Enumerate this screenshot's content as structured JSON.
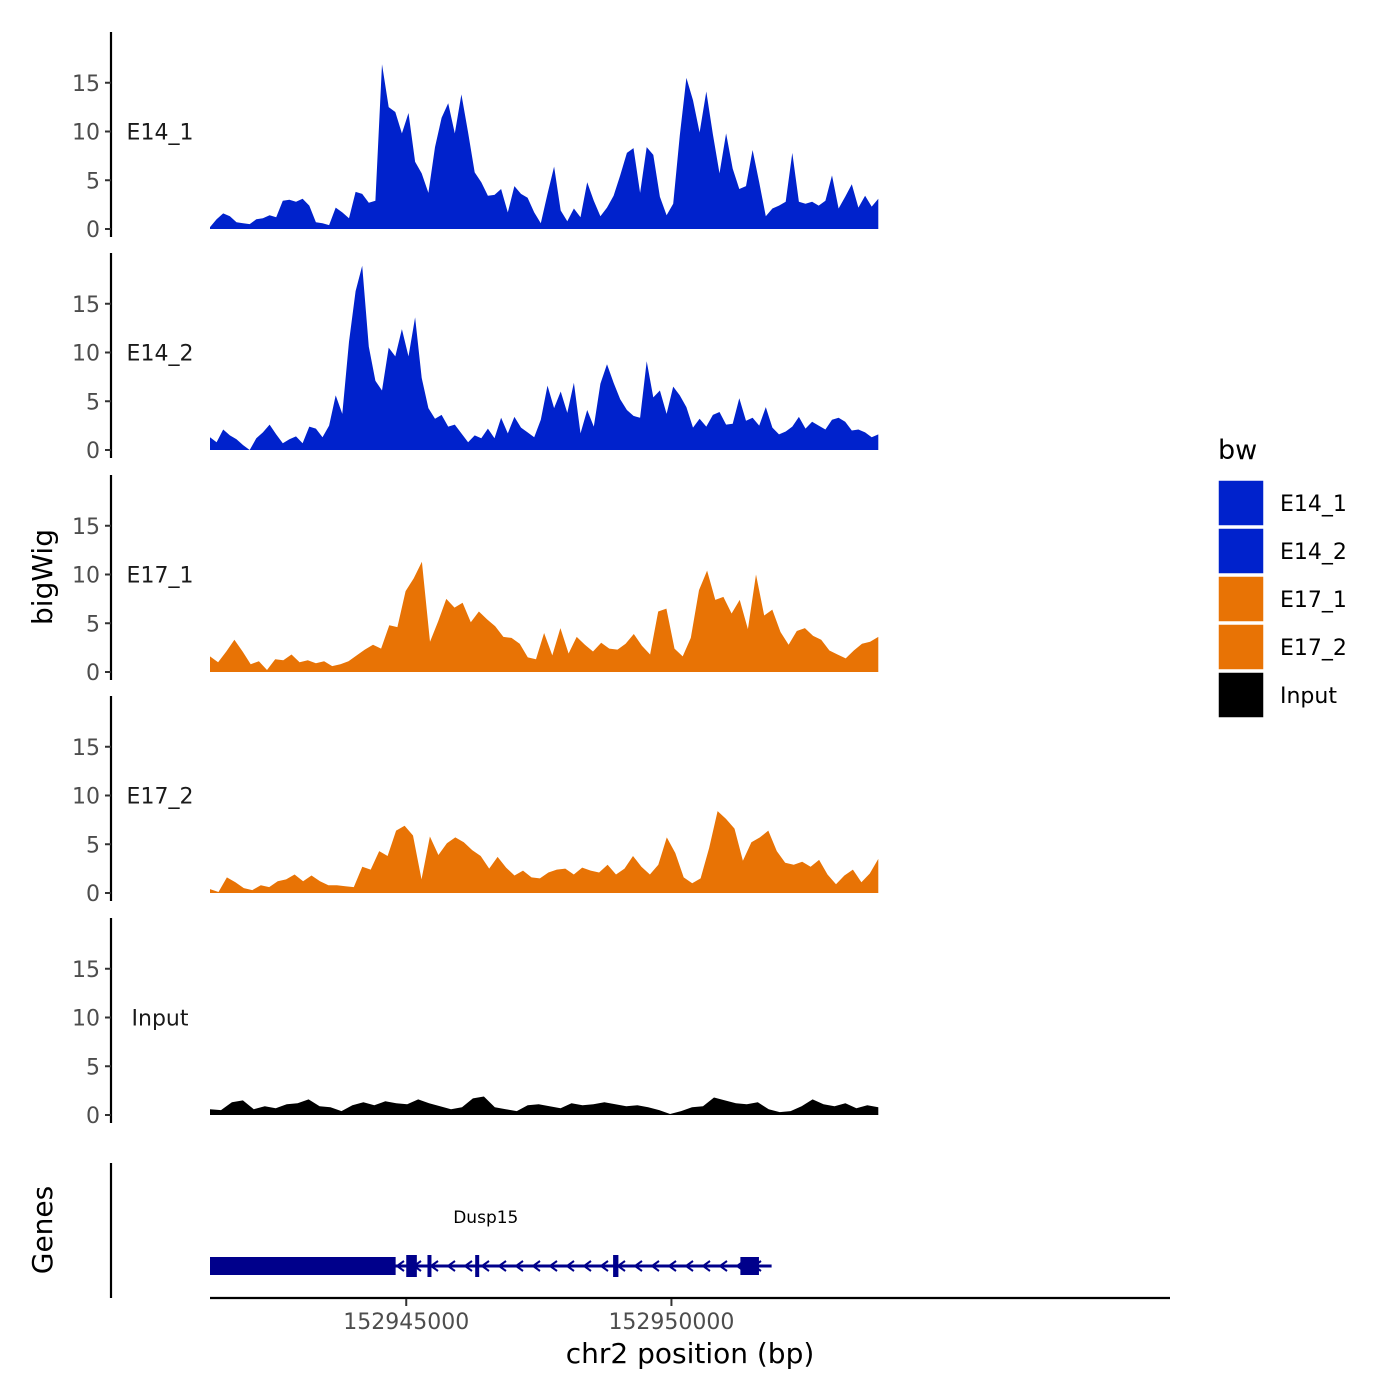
{
  "chart_data": {
    "type": "area",
    "ylabel": "bigWig",
    "xlabel": "chr2 position (bp)",
    "ylim": [
      0,
      20
    ],
    "y_ticks": [
      "0",
      "5",
      "10",
      "15"
    ],
    "x_range": [
      152941300,
      152959400
    ],
    "x_ticks": [
      {
        "value": 152945000,
        "label": "152945000"
      },
      {
        "value": 152950000,
        "label": "152950000"
      }
    ],
    "track_start": 152941300,
    "track_end": 152953900,
    "legend_title": "bw",
    "tracks": [
      {
        "name": "E14_1",
        "color": "#0022CC",
        "values": [
          0.2,
          1,
          1.6,
          1.3,
          0.7,
          0.6,
          0.5,
          1,
          1.1,
          1.4,
          1.2,
          2.9,
          3,
          2.8,
          3.1,
          2.4,
          0.7,
          0.6,
          0.4,
          2.2,
          1.7,
          1.1,
          3.8,
          3.6,
          2.7,
          2.9,
          16.9,
          12.5,
          12,
          9.8,
          11.9,
          6.9,
          5.7,
          3.7,
          8.4,
          11.4,
          12.9,
          9.8,
          13.8,
          9.9,
          5.8,
          4.8,
          3.4,
          3.5,
          4.1,
          1.7,
          4.4,
          3.6,
          3.2,
          1.7,
          0.6,
          3.6,
          6.4,
          1.9,
          0.8,
          2.1,
          1.2,
          4.8,
          2.9,
          1.3,
          2.2,
          3.4,
          5.5,
          7.8,
          8.3,
          3.7,
          8.4,
          7.6,
          3.3,
          1.4,
          2.6,
          9.6,
          15.5,
          13.2,
          9.9,
          14.1,
          9.7,
          5.7,
          9.8,
          6.2,
          4.1,
          4.4,
          8.1,
          4.8,
          1.3,
          2.1,
          2.4,
          2.8,
          7.8,
          2.8,
          2.6,
          2.8,
          2.4,
          2.9,
          5.5,
          2.1,
          3.3,
          4.6,
          2.2,
          3.4,
          2.3,
          3.1
        ]
      },
      {
        "name": "E14_2",
        "color": "#0022CC",
        "values": [
          1.3,
          0.8,
          2.1,
          1.5,
          1.1,
          0.5,
          0,
          1.2,
          1.8,
          2.6,
          1.6,
          0.7,
          1.1,
          1.4,
          0.7,
          2.4,
          2.2,
          1.3,
          2.5,
          5.6,
          3.7,
          11.1,
          16.3,
          18.9,
          10.6,
          7.1,
          6.1,
          10.5,
          9.6,
          12.4,
          9.6,
          13.6,
          7.4,
          4.3,
          3.2,
          3.6,
          2.4,
          2.6,
          1.7,
          0.8,
          1.5,
          1.2,
          2.2,
          1.2,
          3.3,
          1.7,
          3.4,
          2.3,
          1.8,
          1.3,
          3.1,
          6.6,
          4.3,
          6,
          3.8,
          6.9,
          1.7,
          4.1,
          2.4,
          6.8,
          8.8,
          6.9,
          5.2,
          4.1,
          3.5,
          3.3,
          9.1,
          5.4,
          6.1,
          3.7,
          6.5,
          5.6,
          4.4,
          2.3,
          3.2,
          2.4,
          3.6,
          3.9,
          2.6,
          2.7,
          5.3,
          3,
          3.3,
          2.5,
          4.4,
          2.3,
          1.6,
          1.9,
          2.4,
          3.4,
          2.2,
          2.9,
          2.5,
          2.1,
          3.1,
          3.3,
          2.9,
          2,
          2.1,
          1.8,
          1.3,
          1.6
        ]
      },
      {
        "name": "E17_1",
        "color": "#E87305",
        "values": [
          1.6,
          1,
          2.1,
          3.3,
          2.1,
          0.8,
          1.1,
          0.2,
          1.3,
          1.2,
          1.8,
          1,
          1.2,
          0.9,
          1.1,
          0.6,
          0.8,
          1.1,
          1.7,
          2.3,
          2.8,
          2.4,
          4.8,
          4.6,
          8.3,
          9.6,
          11.3,
          3.1,
          5.2,
          7.5,
          6.6,
          7.1,
          5.1,
          6.2,
          5.4,
          4.7,
          3.6,
          3.5,
          2.9,
          1.5,
          1.3,
          4,
          1.7,
          4.5,
          1.9,
          3.6,
          2.8,
          2.1,
          3,
          2.4,
          2.3,
          2.9,
          3.9,
          2.7,
          1.8,
          6.2,
          6.5,
          2.4,
          1.6,
          3.5,
          8.4,
          10.4,
          7.4,
          7.7,
          6,
          7.4,
          4.4,
          10,
          5.8,
          6.4,
          4.1,
          2.8,
          4.2,
          4.5,
          3.7,
          3.3,
          2.2,
          1.8,
          1.4,
          2.2,
          2.9,
          3.1,
          3.6
        ]
      },
      {
        "name": "E17_2",
        "color": "#E87305",
        "values": [
          0.4,
          0.1,
          1.6,
          1.1,
          0.5,
          0.3,
          0.8,
          0.6,
          1.2,
          1.4,
          1.9,
          1.2,
          1.8,
          1.2,
          0.8,
          0.8,
          0.7,
          0.6,
          2.7,
          2.4,
          4.3,
          3.8,
          6.4,
          6.9,
          5.9,
          1.4,
          5.8,
          3.9,
          5.1,
          5.7,
          5.2,
          4.4,
          3.8,
          2.5,
          3.7,
          2.6,
          1.8,
          2.3,
          1.6,
          1.5,
          2.1,
          2.4,
          2.5,
          1.9,
          2.6,
          2.3,
          2.1,
          2.9,
          1.9,
          2.5,
          3.8,
          2.7,
          1.9,
          2.9,
          5.7,
          4.1,
          1.6,
          1,
          1.5,
          4.6,
          8.4,
          7.6,
          6.6,
          3.3,
          5.2,
          5.7,
          6.4,
          4.3,
          3.1,
          2.9,
          3.2,
          2.7,
          3.4,
          1.9,
          0.9,
          1.8,
          2.4,
          1.1,
          2,
          3.5
        ]
      },
      {
        "name": "Input",
        "color": "#000000",
        "values": [
          0.6,
          0.5,
          1.3,
          1.5,
          0.6,
          0.9,
          0.7,
          1.1,
          1.2,
          1.6,
          0.9,
          0.8,
          0.4,
          1,
          1.3,
          1,
          1.4,
          1.2,
          1.1,
          1.6,
          1.2,
          0.9,
          0.6,
          0.8,
          1.7,
          1.9,
          0.8,
          0.6,
          0.4,
          1,
          1.1,
          0.9,
          0.7,
          1.2,
          1,
          1.1,
          1.3,
          1.1,
          0.9,
          1,
          0.8,
          0.5,
          0.1,
          0.4,
          0.8,
          0.9,
          1.8,
          1.5,
          1.2,
          1.1,
          1.3,
          0.6,
          0.3,
          0.4,
          0.9,
          1.6,
          1.1,
          0.9,
          1.2,
          0.7,
          1,
          0.8
        ]
      }
    ],
    "genes": [
      {
        "name": "Dusp15",
        "start": 152941300,
        "end": 152951700,
        "strand": "-",
        "exons": [
          [
            152941300,
            152944800
          ],
          [
            152945000,
            152945200
          ],
          [
            152945400,
            152945450
          ],
          [
            152946300,
            152946350
          ],
          [
            152948900,
            152949000
          ],
          [
            152951300,
            152951650
          ]
        ]
      }
    ],
    "genes_label": "Genes"
  }
}
